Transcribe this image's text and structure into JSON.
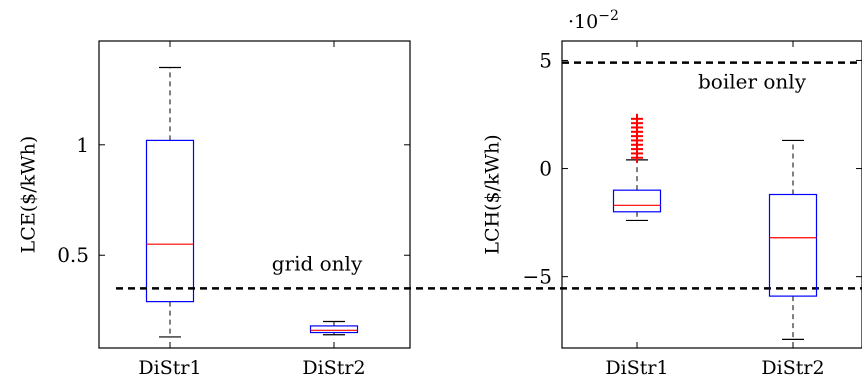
{
  "chart_data": [
    {
      "type": "box",
      "ylabel": "LCE($/kWh)",
      "categories": [
        "DiStr1",
        "DiStr2"
      ],
      "ylim": [
        0.08,
        1.47
      ],
      "yticks": [
        0.5,
        1
      ],
      "ytick_labels": [
        "0.5",
        "1"
      ],
      "boxes": [
        {
          "category": "DiStr1",
          "whisker_low": 0.13,
          "q1": 0.29,
          "median": 0.55,
          "q3": 1.02,
          "whisker_high": 1.35,
          "outliers": []
        },
        {
          "category": "DiStr2",
          "whisker_low": 0.14,
          "q1": 0.15,
          "median": 0.16,
          "q3": 0.18,
          "whisker_high": 0.2,
          "outliers": []
        }
      ],
      "reference_line": {
        "value": 0.35,
        "label": "grid only",
        "style": "dashed",
        "color": "#000000"
      },
      "colors": {
        "box": "#0000ff",
        "median": "#ff0000",
        "whisker": "#000000"
      }
    },
    {
      "type": "box",
      "ylabel": "LCH($/kWh)",
      "scale_prefix": "·10",
      "scale_exponent": "−2",
      "categories": [
        "DiStr1",
        "DiStr2"
      ],
      "ylim": [
        -8.3,
        5.9
      ],
      "yticks": [
        -5,
        0,
        5
      ],
      "ytick_labels": [
        "−5",
        "0",
        "5"
      ],
      "boxes": [
        {
          "category": "DiStr1",
          "whisker_low": -2.4,
          "q1": -2.0,
          "median": -1.7,
          "q3": -1.0,
          "whisker_high": 0.4,
          "outliers": [
            0.5,
            0.7,
            0.9,
            1.1,
            1.3,
            1.5,
            1.7,
            1.9,
            2.1,
            2.3
          ]
        },
        {
          "category": "DiStr2",
          "whisker_low": -7.9,
          "q1": -5.9,
          "median": -3.2,
          "q3": -1.2,
          "whisker_high": 1.3,
          "outliers": []
        }
      ],
      "reference_line": {
        "value": 4.9,
        "label": "boiler only",
        "style": "dashed",
        "color": "#000000"
      },
      "colors": {
        "box": "#0000ff",
        "median": "#ff0000",
        "whisker": "#000000",
        "outlier": "#ff0000"
      }
    }
  ]
}
